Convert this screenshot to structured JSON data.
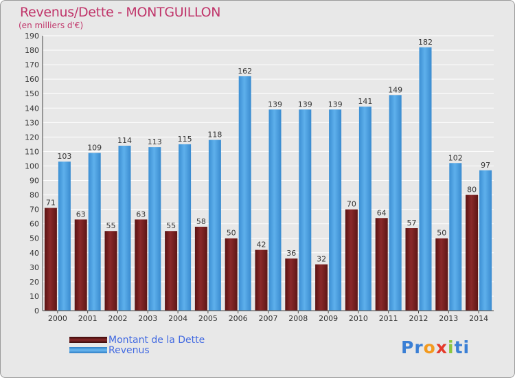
{
  "header": {
    "title": "Revenus/Dette - MONTGUILLON",
    "subtitle": "(en milliers d'€)"
  },
  "legend": {
    "debt_label": "Montant de la Dette",
    "revenue_label": "Revenus"
  },
  "brand": {
    "letters": [
      "P",
      "r",
      "o",
      "x",
      "i",
      "t",
      "i"
    ],
    "colors": [
      "#3a7fd5",
      "#3a7fd5",
      "#f39a1f",
      "#e53b2c",
      "#8cc63f",
      "#3a7fd5",
      "#3a7fd5"
    ]
  },
  "colors": {
    "debt": "#7a2424",
    "revenue": "#4a9fe0",
    "background": "#e8e8e8",
    "title": "#c0356a"
  },
  "chart_data": {
    "type": "bar",
    "categories": [
      "2000",
      "2001",
      "2002",
      "2003",
      "2004",
      "2005",
      "2006",
      "2007",
      "2008",
      "2009",
      "2010",
      "2011",
      "2012",
      "2013",
      "2014"
    ],
    "series": [
      {
        "name": "Montant de la Dette",
        "values": [
          71,
          63,
          55,
          63,
          55,
          58,
          50,
          42,
          36,
          32,
          70,
          64,
          57,
          50,
          80
        ]
      },
      {
        "name": "Revenus",
        "values": [
          103,
          109,
          114,
          113,
          115,
          118,
          162,
          139,
          139,
          139,
          141,
          149,
          182,
          102,
          97
        ]
      }
    ],
    "title": "Revenus/Dette - MONTGUILLON",
    "ylabel": "(en milliers d'€)",
    "ylim": [
      0,
      190
    ],
    "ytick_step": 10,
    "grid": true,
    "legend_position": "bottom-left"
  }
}
